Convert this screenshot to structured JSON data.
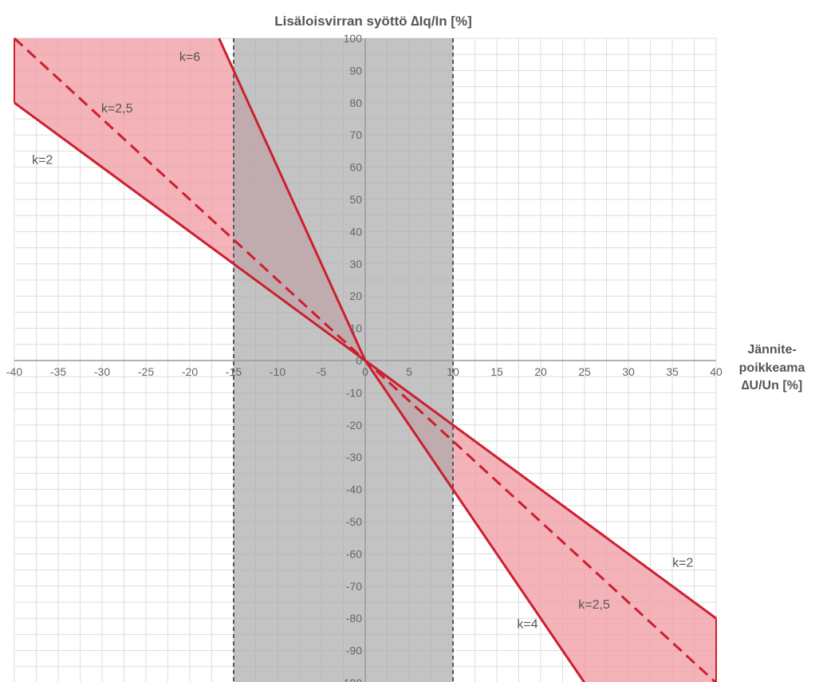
{
  "chart_data": {
    "type": "line",
    "title": "Lisäloisvirran syöttö ∆Iq/In [%]",
    "xlabel": [
      "Jännite-",
      "poikkeama",
      "∆U/Un  [%]"
    ],
    "ylabel": "",
    "xlim": [
      -40,
      40
    ],
    "ylim": [
      -100,
      100
    ],
    "x_ticks": [
      -40,
      -35,
      -30,
      -25,
      -20,
      -15,
      -10,
      -5,
      0,
      5,
      10,
      15,
      20,
      25,
      30,
      35,
      40
    ],
    "y_ticks": [
      100,
      90,
      80,
      70,
      60,
      50,
      40,
      30,
      20,
      10,
      0,
      -10,
      -20,
      -30,
      -40,
      -50,
      -60,
      -70,
      -80,
      -90,
      -100
    ],
    "grid": true,
    "dead_band": [
      -15,
      10
    ],
    "colors": {
      "line": "#cc1f2d",
      "fill": "#ef9aa2",
      "dead_band": "#a9a9a9",
      "boundary": "#4d5a66",
      "grid": "#dddddd",
      "axis": "#999999"
    },
    "series": [
      {
        "name": "k=6",
        "style": "solid",
        "points": [
          [
            -16.67,
            100
          ],
          [
            -15,
            90
          ],
          [
            0,
            0
          ]
        ]
      },
      {
        "name": "k=2",
        "style": "solid",
        "points": [
          [
            -40,
            80
          ],
          [
            -15,
            30
          ],
          [
            0,
            0
          ],
          [
            10,
            -20
          ],
          [
            40,
            -80
          ]
        ]
      },
      {
        "name": "k=2,5",
        "style": "dashed",
        "points": [
          [
            -40,
            100
          ],
          [
            -15,
            37.5
          ],
          [
            0,
            0
          ],
          [
            10,
            -25
          ],
          [
            40,
            -100
          ]
        ]
      },
      {
        "name": "k=4",
        "style": "solid",
        "points": [
          [
            0,
            0
          ],
          [
            10,
            -40
          ],
          [
            25,
            -100
          ]
        ]
      }
    ],
    "fill_regions": [
      [
        [
          -40,
          100
        ],
        [
          -16.67,
          100
        ],
        [
          0,
          0
        ],
        [
          -40,
          80
        ]
      ],
      [
        [
          0,
          0
        ],
        [
          40,
          -80
        ],
        [
          40,
          -100
        ],
        [
          25,
          -100
        ]
      ]
    ],
    "labels": [
      {
        "text": "k=6",
        "x": -20,
        "y": 93,
        "color": "#555555"
      },
      {
        "text": "k=2,5",
        "x": -28.3,
        "y": 77,
        "color": "#555555"
      },
      {
        "text": "k=2",
        "x": -36.8,
        "y": 61,
        "color": "#4d5a66"
      },
      {
        "text": "k=2",
        "x": 36.2,
        "y": -64,
        "color": "#555555"
      },
      {
        "text": "k=2,5",
        "x": 26.1,
        "y": -77,
        "color": "#555555"
      },
      {
        "text": "k=4",
        "x": 18.5,
        "y": -83,
        "color": "#555555"
      }
    ]
  }
}
